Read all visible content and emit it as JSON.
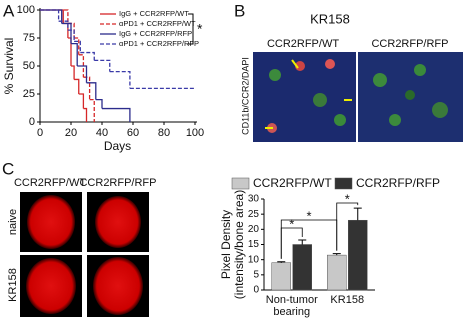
{
  "panels": {
    "a": "A",
    "b": "B",
    "c": "C"
  },
  "chart_data": [
    {
      "type": "survival",
      "xlabel": "Days",
      "ylabel": "% Survival",
      "xlim": [
        0,
        100
      ],
      "xticks": [
        0,
        20,
        40,
        60,
        80,
        100
      ],
      "ylim": [
        0,
        100
      ],
      "yticks": [
        0,
        25,
        50,
        75,
        100
      ],
      "annotation": "*",
      "series": [
        {
          "name": "IgG + CCR2RFP/WT",
          "color": "#d62728",
          "dashed": false,
          "x": [
            0,
            15,
            18,
            20,
            22,
            25,
            28,
            30
          ],
          "values": [
            100,
            88,
            75,
            50,
            38,
            25,
            12,
            0
          ]
        },
        {
          "name": "αPD1 + CCR2RFP/WT",
          "color": "#d62728",
          "dashed": true,
          "x": [
            0,
            18,
            22,
            25,
            28,
            32,
            35
          ],
          "values": [
            100,
            88,
            75,
            60,
            40,
            20,
            0
          ]
        },
        {
          "name": "IgG + CCR2RFP/RFP",
          "color": "#2c2c8c",
          "dashed": false,
          "x": [
            0,
            14,
            20,
            24,
            30,
            36,
            40,
            58
          ],
          "values": [
            100,
            88,
            70,
            50,
            35,
            20,
            12,
            0
          ]
        },
        {
          "name": "αPD1 + CCR2RFP/RFP",
          "color": "#3a3aa8",
          "dashed": true,
          "x": [
            0,
            12,
            18,
            22,
            26,
            35,
            45,
            58,
            100
          ],
          "values": [
            100,
            90,
            82,
            72,
            62,
            55,
            45,
            30,
            30
          ]
        }
      ]
    },
    {
      "type": "bar",
      "ylabel": [
        "Pixel Density",
        "(intensity/bone area)"
      ],
      "categories": [
        "Non-tumor bearing",
        "KR158"
      ],
      "ylim": [
        0,
        30
      ],
      "yticks": [
        0,
        5,
        10,
        15,
        20,
        25,
        30
      ],
      "annotations": [
        "*",
        "*",
        "*"
      ],
      "series": [
        {
          "name": "CCR2RFP/WT",
          "color": "#c8c8c8",
          "values": [
            9,
            11.5
          ],
          "errors": [
            0.3,
            0.5
          ]
        },
        {
          "name": "CCR2RFP/RFP",
          "color": "#333333",
          "values": [
            15,
            23
          ],
          "errors": [
            1.5,
            4
          ]
        }
      ]
    }
  ],
  "micrographs": {
    "title": "KR158",
    "columns": [
      "CCR2RFP/WT",
      "CCR2RFP/RFP"
    ],
    "stain": "CD11b/CCR2/DAPI"
  },
  "bone_images": {
    "columns": [
      "CCR2RFP/WT",
      "CCR2RFP/RFP"
    ],
    "rows": [
      "naive",
      "KR158"
    ]
  }
}
